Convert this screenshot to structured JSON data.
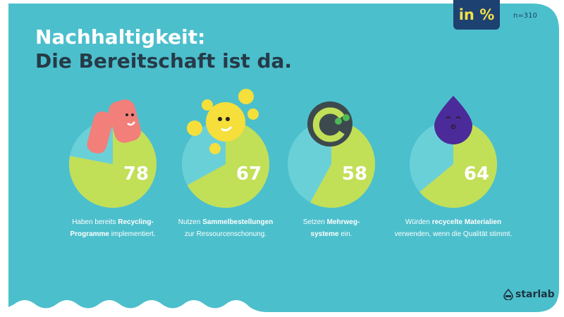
{
  "header": {
    "title_line1": "Nachhaltigkeit:",
    "title_line2": "Die Bereitschaft ist da.",
    "unit_badge": "in %",
    "sample_size": "n=310"
  },
  "colors": {
    "background": "#4cbfcc",
    "slice_yes": "#c2df58",
    "slice_rest": "#6ad0d8",
    "badge": "#1d4170",
    "badge_text": "#f4e14a"
  },
  "chart_data": [
    {
      "type": "pie",
      "value": 78,
      "label_pre": "Haben bereits ",
      "label_bold": "Recycling-Programme",
      "label_post": " implementiert.",
      "icon": "pink-character-icon"
    },
    {
      "type": "pie",
      "value": 67,
      "label_pre": "Nutzen ",
      "label_bold": "Sammelbestellungen",
      "label_post": " zur Ressourcenschonung.",
      "icon": "sun-character-icon"
    },
    {
      "type": "pie",
      "value": 58,
      "label_pre": "Setzen ",
      "label_bold": "Mehrweg-systeme",
      "label_post": " ein.",
      "icon": "globe-cycle-icon"
    },
    {
      "type": "pie",
      "value": 64,
      "label_pre": "Würden ",
      "label_bold": "recycelte Materialien",
      "label_post": " verwenden, wenn die Qualität stimmt.",
      "icon": "purple-drop-character-icon"
    }
  ],
  "footer": {
    "logo_text": "starlab"
  }
}
